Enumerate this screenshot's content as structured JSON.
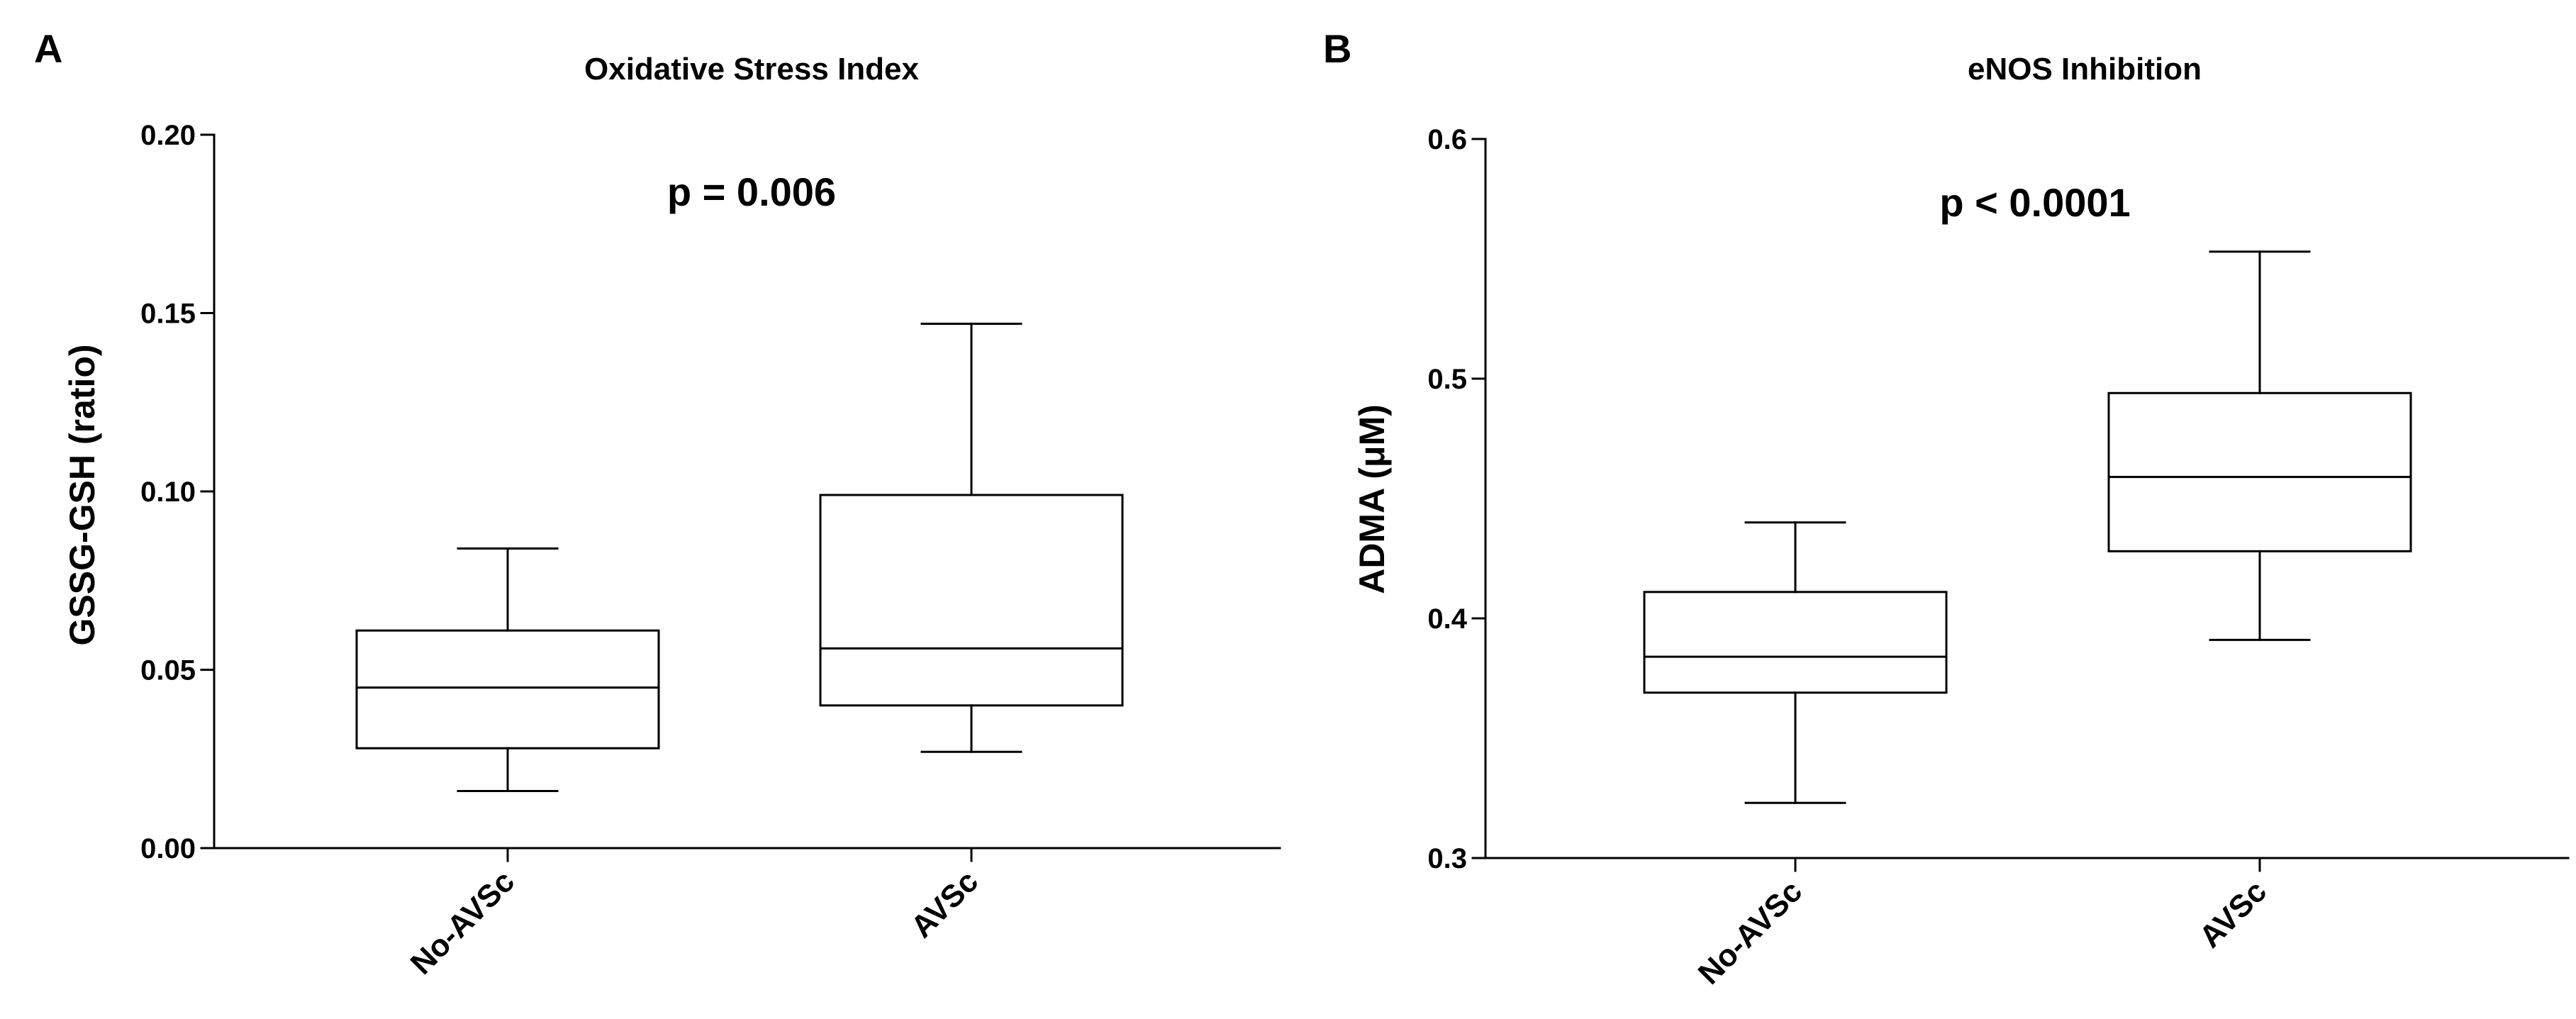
{
  "chart_data": [
    {
      "type": "box",
      "panel": "A",
      "title": "Oxidative Stress Index",
      "annotation": "p = 0.006",
      "ylabel": "GSSG-GSH (ratio)",
      "xlabel": "",
      "ylim": [
        0,
        0.2
      ],
      "yticks": [
        0,
        0.05,
        0.1,
        0.15,
        0.2
      ],
      "ytick_labels": [
        "0.00",
        "0.05",
        "0.10",
        "0.15",
        "0.20"
      ],
      "categories": [
        "No-AVSc",
        "AVSc"
      ],
      "boxes": [
        {
          "name": "No-AVSc",
          "min": 0.016,
          "q1": 0.028,
          "median": 0.045,
          "q3": 0.061,
          "max": 0.084
        },
        {
          "name": "AVSc",
          "min": 0.027,
          "q1": 0.04,
          "median": 0.056,
          "q3": 0.099,
          "max": 0.147
        }
      ]
    },
    {
      "type": "box",
      "panel": "B",
      "title": "eNOS Inhibition",
      "annotation": "p < 0.0001",
      "ylabel": "ADMA (μM)",
      "xlabel": "",
      "ylim": [
        0.3,
        0.6
      ],
      "yticks": [
        0.3,
        0.4,
        0.5,
        0.6
      ],
      "ytick_labels": [
        "0.3",
        "0.4",
        "0.5",
        "0.6"
      ],
      "categories": [
        "No-AVSc",
        "AVSc"
      ],
      "boxes": [
        {
          "name": "No-AVSc",
          "min": 0.323,
          "q1": 0.369,
          "median": 0.384,
          "q3": 0.411,
          "max": 0.44
        },
        {
          "name": "AVSc",
          "min": 0.391,
          "q1": 0.428,
          "median": 0.459,
          "q3": 0.494,
          "max": 0.553
        }
      ]
    }
  ]
}
